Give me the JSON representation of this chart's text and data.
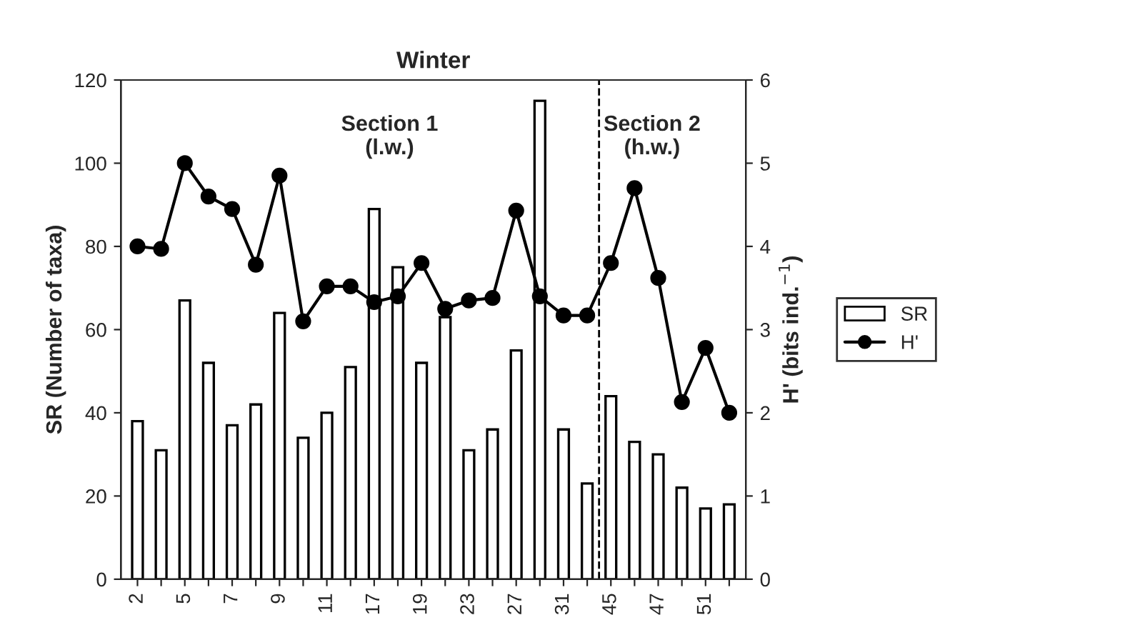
{
  "chart_data": {
    "type": "bar",
    "title": "Winter",
    "ylabel": "SR (Number of taxa)",
    "y2label": "H' (bits ind.$^{−1}$)",
    "categories": [
      "2",
      null,
      "5",
      null,
      "7",
      null,
      "9",
      null,
      "11",
      null,
      "17",
      null,
      "19",
      null,
      "23",
      null,
      "27",
      null,
      "31",
      null,
      "45",
      null,
      "47",
      null,
      "51",
      null
    ],
    "series": [
      {
        "name": "SR",
        "color": "#ffffff",
        "values": [
          38,
          31,
          67,
          52,
          37,
          42,
          64,
          34,
          40,
          51,
          89,
          75,
          52,
          63,
          31,
          36,
          55,
          115,
          36,
          23,
          44,
          33,
          30,
          22,
          17,
          18
        ]
      },
      {
        "name": "H'",
        "type": "line",
        "axis": "y2",
        "color": "#000000",
        "marker": "circle",
        "line_style": "solid",
        "values": [
          4.0,
          3.97,
          5.0,
          4.6,
          4.45,
          3.78,
          4.85,
          3.1,
          3.52,
          3.52,
          3.33,
          3.4,
          3.8,
          3.25,
          3.35,
          3.38,
          4.43,
          3.4,
          3.17,
          3.17,
          3.8,
          4.7,
          3.62,
          2.13,
          2.78,
          2.0
        ]
      }
    ],
    "ylim": [
      0,
      120
    ],
    "yticks": [
      0,
      20,
      40,
      60,
      80,
      100,
      120
    ],
    "y2lim": [
      0,
      6
    ],
    "y2ticks": [
      0,
      1,
      2,
      3,
      4,
      5,
      6
    ],
    "annotations": [
      "Section 1\n(l.w.)",
      "Section 2\n(h.w.)"
    ],
    "grid": false,
    "legend": "right"
  }
}
